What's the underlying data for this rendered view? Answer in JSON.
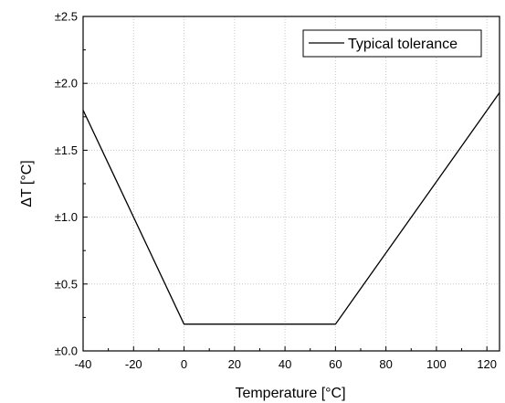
{
  "chart_data": {
    "type": "line",
    "xlabel": "Temperature [°C]",
    "ylabel": "ΔT [°C]",
    "xlim": [
      -40,
      125
    ],
    "ylim": [
      0,
      2.5
    ],
    "x_ticks": [
      -40,
      -20,
      0,
      20,
      40,
      60,
      80,
      100,
      120
    ],
    "x_tick_labels": [
      "-40",
      "-20",
      "0",
      "20",
      "40",
      "60",
      "80",
      "100",
      "120"
    ],
    "y_ticks": [
      0,
      0.5,
      1.0,
      1.5,
      2.0,
      2.5
    ],
    "y_tick_labels": [
      "±0.0",
      "±0.5",
      "±1.0",
      "±1.5",
      "±2.0",
      "±2.5"
    ],
    "grid": true,
    "legend_position": "top-right",
    "series": [
      {
        "name": "Typical tolerance",
        "color": "#000000",
        "x": [
          -40,
          0,
          60,
          125
        ],
        "y": [
          1.8,
          0.2,
          0.2,
          1.93
        ]
      }
    ]
  }
}
